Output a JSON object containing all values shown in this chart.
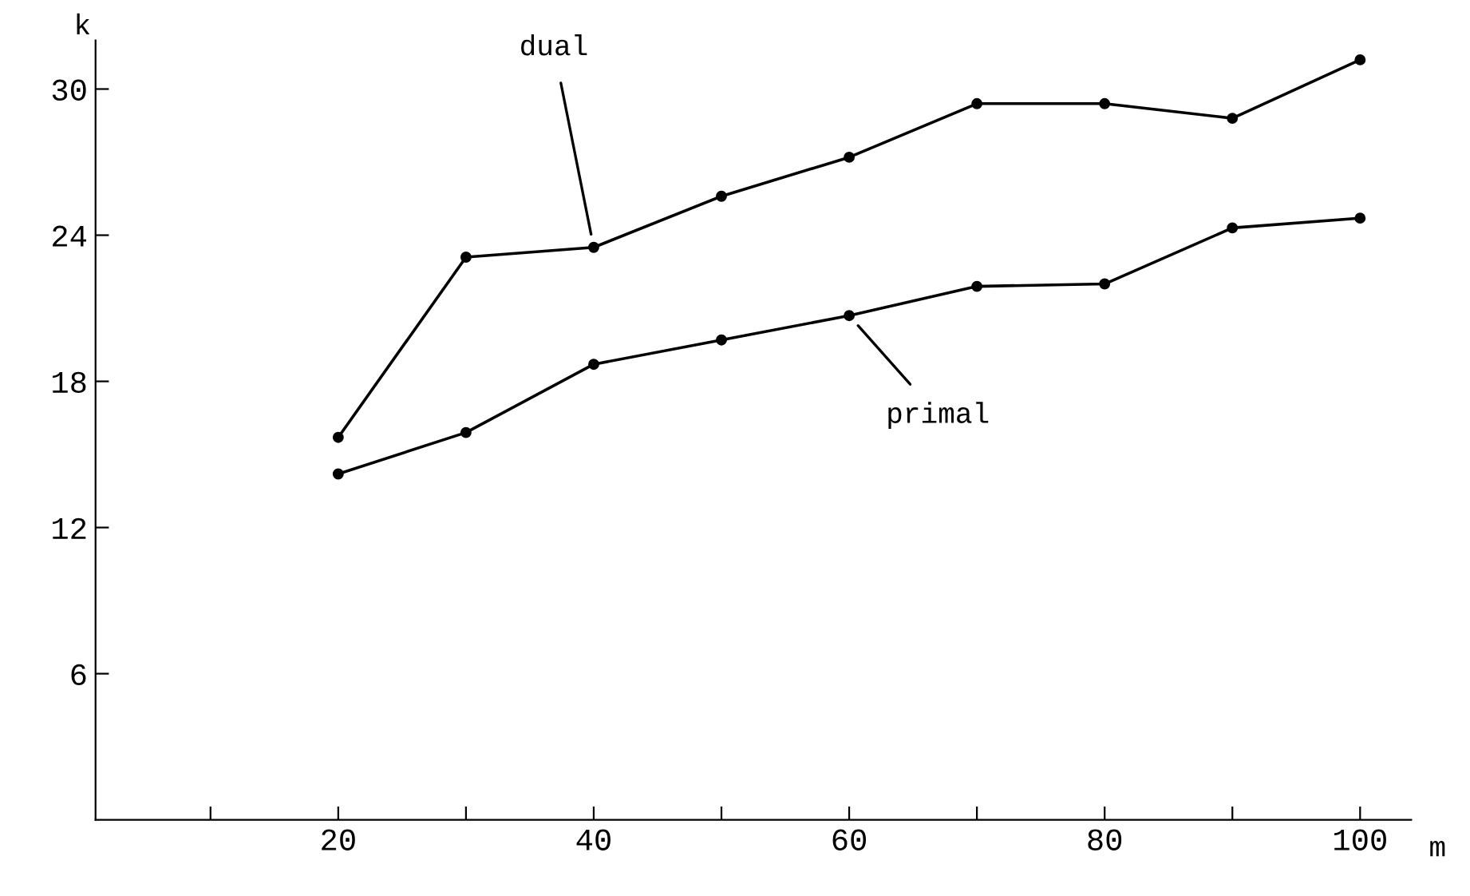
{
  "chart_data": {
    "type": "line",
    "xlabel": "m",
    "ylabel": "k",
    "x": [
      20,
      30,
      40,
      50,
      60,
      70,
      80,
      90,
      100
    ],
    "series": [
      {
        "color": "#000000",
        "values": [
          15.7,
          23.1,
          23.5,
          25.6,
          27.2,
          29.4,
          29.4,
          28.8,
          31.2
        ]
      },
      {
        "color": "#000000",
        "values": [
          14.2,
          15.9,
          18.7,
          19.7,
          20.7,
          21.9,
          22.0,
          24.3,
          24.7
        ]
      }
    ],
    "annotations": [
      {
        "text": "dual",
        "x": 40,
        "y": 23.5
      },
      {
        "text": "primal",
        "x": 60,
        "y": 20.7
      }
    ],
    "xlim": [
      1,
      104
    ],
    "ylim": [
      0,
      32
    ],
    "xticks": [
      {
        "value": 10,
        "label": null
      },
      20,
      {
        "value": 30,
        "label": null
      },
      40,
      {
        "value": 50,
        "label": null
      },
      60,
      {
        "value": 70,
        "label": null
      },
      80,
      {
        "value": 90,
        "label": null
      },
      100
    ],
    "yticks": [
      6,
      12,
      18,
      24,
      30
    ],
    "marker": "circle",
    "line_style": "solid",
    "grid": false,
    "legend": false
  }
}
